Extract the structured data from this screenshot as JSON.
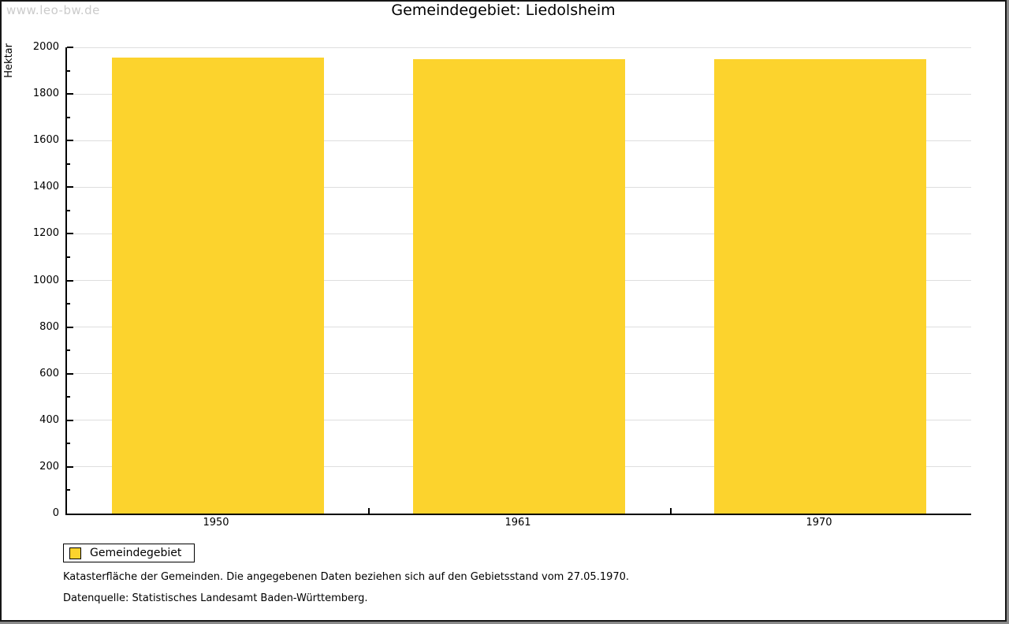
{
  "watermark": "www.leo-bw.de",
  "title": "Gemeindegebiet: Liedolsheim",
  "chart_data": {
    "type": "bar",
    "title": "Gemeindegebiet: Liedolsheim",
    "categories": [
      "1950",
      "1961",
      "1970"
    ],
    "series": [
      {
        "name": "Gemeindegebiet",
        "values": [
          1956,
          1950,
          1950
        ]
      }
    ],
    "xlabel": "",
    "ylabel": "Hektar",
    "ylim": [
      0,
      2000
    ],
    "ytick_step": 200,
    "yminor_step": 100,
    "grid": true,
    "legend_position": "bottom-left",
    "bar_color": "#FCD32D"
  },
  "legend": {
    "items": [
      {
        "label": "Gemeindegebiet",
        "color": "#FCD32D"
      }
    ]
  },
  "footer": {
    "line1": "Katasterfläche der Gemeinden. Die angegebenen Daten beziehen sich auf den Gebietsstand vom 27.05.1970.",
    "line2": "Datenquelle: Statistisches Landesamt Baden-Württemberg."
  },
  "colors": {
    "bar": "#FCD32D",
    "grid": "#DEDEDE",
    "axis": "#000000",
    "watermark": "#CBCBCB"
  }
}
